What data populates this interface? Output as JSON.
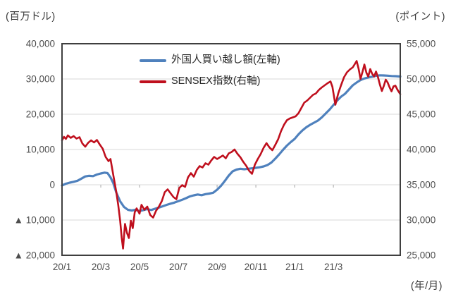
{
  "titles": {
    "left_axis_unit": "(百万ドル)",
    "right_axis_unit": "(ポイント)",
    "x_axis_unit": "(年/月)"
  },
  "legend": {
    "items": [
      {
        "label": "外国人買い越し額(左軸)",
        "color": "#4f81bd"
      },
      {
        "label": "SENSEX指数(右軸)",
        "color": "#bf0f1d"
      }
    ]
  },
  "chart_data": {
    "type": "line",
    "title": "",
    "left_axis": {
      "unit": "百万ドル",
      "min": -20000,
      "max": 40000,
      "step": 10000,
      "tick_values": [
        40000,
        30000,
        20000,
        10000,
        0,
        -10000,
        -20000
      ],
      "tick_labels": [
        "40,000",
        "30,000",
        "20,000",
        "10,000",
        "0",
        "▲ 10,000",
        "▲ 20,000"
      ]
    },
    "right_axis": {
      "unit": "ポイント",
      "min": 25000,
      "max": 55000,
      "step": 5000,
      "tick_values": [
        55000,
        50000,
        45000,
        40000,
        35000,
        30000,
        25000
      ],
      "tick_labels": [
        "55,000",
        "50,000",
        "45,000",
        "40,000",
        "35,000",
        "30,000",
        "25,000"
      ]
    },
    "x_axis": {
      "unit": "年/月",
      "domain_months": [
        0,
        17.45
      ],
      "labels": [
        "20/1",
        "20/3",
        "20/5",
        "20/7",
        "20/9",
        "20/11",
        "21/1",
        "21/3"
      ],
      "label_positions_months": [
        0,
        2,
        4,
        6,
        8,
        10,
        12,
        14
      ]
    },
    "grid": {
      "color": "#d9d9d9",
      "values_left": [
        30000,
        20000,
        10000,
        0,
        -10000
      ]
    },
    "plot_border_color": "#3f3f3f",
    "tick_color": "#a6a6a6",
    "label_color": "#4d4d4d",
    "series": [
      {
        "name": "外国人買い越し額(左軸)",
        "axis": "left",
        "color": "#4f81bd",
        "stroke_width": 3.2,
        "points": [
          [
            0,
            -200
          ],
          [
            0.2,
            300
          ],
          [
            0.4,
            600
          ],
          [
            0.6,
            850
          ],
          [
            0.8,
            1150
          ],
          [
            1,
            1750
          ],
          [
            1.2,
            2350
          ],
          [
            1.4,
            2550
          ],
          [
            1.6,
            2450
          ],
          [
            1.8,
            2900
          ],
          [
            2,
            3200
          ],
          [
            2.2,
            3450
          ],
          [
            2.35,
            3300
          ],
          [
            2.5,
            2100
          ],
          [
            2.65,
            400
          ],
          [
            2.8,
            -2200
          ],
          [
            3,
            -4700
          ],
          [
            3.2,
            -6300
          ],
          [
            3.4,
            -7100
          ],
          [
            3.6,
            -7300
          ],
          [
            3.8,
            -7100
          ],
          [
            4,
            -7450
          ],
          [
            4.2,
            -7200
          ],
          [
            4.4,
            -6900
          ],
          [
            4.6,
            -7150
          ],
          [
            4.8,
            -6800
          ],
          [
            5,
            -6450
          ],
          [
            5.2,
            -6100
          ],
          [
            5.4,
            -5700
          ],
          [
            5.6,
            -5350
          ],
          [
            5.8,
            -5050
          ],
          [
            6,
            -4650
          ],
          [
            6.2,
            -4250
          ],
          [
            6.4,
            -3800
          ],
          [
            6.6,
            -3300
          ],
          [
            6.8,
            -3000
          ],
          [
            7,
            -2750
          ],
          [
            7.2,
            -2950
          ],
          [
            7.4,
            -2650
          ],
          [
            7.6,
            -2500
          ],
          [
            7.8,
            -2250
          ],
          [
            8,
            -1400
          ],
          [
            8.2,
            -300
          ],
          [
            8.4,
            1100
          ],
          [
            8.6,
            2600
          ],
          [
            8.8,
            3800
          ],
          [
            9,
            4300
          ],
          [
            9.2,
            4550
          ],
          [
            9.4,
            4400
          ],
          [
            9.6,
            4550
          ],
          [
            9.8,
            4650
          ],
          [
            10,
            4800
          ],
          [
            10.2,
            4950
          ],
          [
            10.4,
            5200
          ],
          [
            10.6,
            5600
          ],
          [
            10.8,
            6300
          ],
          [
            11,
            7400
          ],
          [
            11.2,
            8600
          ],
          [
            11.4,
            9900
          ],
          [
            11.6,
            11100
          ],
          [
            11.8,
            12100
          ],
          [
            12,
            13000
          ],
          [
            12.2,
            14300
          ],
          [
            12.4,
            15400
          ],
          [
            12.6,
            16300
          ],
          [
            12.8,
            17000
          ],
          [
            13,
            17600
          ],
          [
            13.2,
            18200
          ],
          [
            13.4,
            19100
          ],
          [
            13.6,
            20200
          ],
          [
            13.8,
            21300
          ],
          [
            14,
            22600
          ],
          [
            14.2,
            23900
          ],
          [
            14.4,
            25000
          ],
          [
            14.6,
            25800
          ],
          [
            14.8,
            27000
          ],
          [
            15,
            28200
          ],
          [
            15.2,
            29000
          ],
          [
            15.4,
            29700
          ],
          [
            15.6,
            30150
          ],
          [
            15.8,
            30450
          ],
          [
            16,
            30650
          ],
          [
            16.2,
            30900
          ],
          [
            16.4,
            31050
          ],
          [
            16.6,
            31000
          ],
          [
            16.8,
            30950
          ],
          [
            17,
            30850
          ],
          [
            17.2,
            30800
          ],
          [
            17.45,
            30700
          ]
        ]
      },
      {
        "name": "SENSEX指数(右軸)",
        "axis": "right",
        "color": "#bf0f1d",
        "stroke_width": 2.6,
        "points": [
          [
            0,
            41300
          ],
          [
            0.1,
            41800
          ],
          [
            0.2,
            41500
          ],
          [
            0.3,
            42000
          ],
          [
            0.45,
            41650
          ],
          [
            0.6,
            41900
          ],
          [
            0.75,
            41550
          ],
          [
            0.9,
            41750
          ],
          [
            1.05,
            40850
          ],
          [
            1.2,
            40400
          ],
          [
            1.35,
            40950
          ],
          [
            1.5,
            41300
          ],
          [
            1.65,
            41000
          ],
          [
            1.8,
            41350
          ],
          [
            1.95,
            40700
          ],
          [
            2.1,
            40100
          ],
          [
            2.25,
            38950
          ],
          [
            2.4,
            38350
          ],
          [
            2.5,
            38650
          ],
          [
            2.65,
            36300
          ],
          [
            2.8,
            34000
          ],
          [
            2.9,
            32100
          ],
          [
            3,
            29900
          ],
          [
            3.08,
            27500
          ],
          [
            3.15,
            25950
          ],
          [
            3.25,
            29450
          ],
          [
            3.35,
            28200
          ],
          [
            3.45,
            27450
          ],
          [
            3.55,
            29900
          ],
          [
            3.65,
            28850
          ],
          [
            3.75,
            31100
          ],
          [
            3.85,
            31650
          ],
          [
            4,
            30900
          ],
          [
            4.1,
            32150
          ],
          [
            4.25,
            31450
          ],
          [
            4.4,
            31900
          ],
          [
            4.55,
            30700
          ],
          [
            4.7,
            30350
          ],
          [
            4.85,
            31300
          ],
          [
            5,
            31900
          ],
          [
            5.15,
            32700
          ],
          [
            5.3,
            33950
          ],
          [
            5.45,
            34350
          ],
          [
            5.6,
            33800
          ],
          [
            5.75,
            33250
          ],
          [
            5.9,
            32950
          ],
          [
            6.05,
            34550
          ],
          [
            6.2,
            34950
          ],
          [
            6.35,
            34700
          ],
          [
            6.5,
            36050
          ],
          [
            6.65,
            36650
          ],
          [
            6.8,
            36150
          ],
          [
            6.95,
            37100
          ],
          [
            7.1,
            37650
          ],
          [
            7.25,
            37450
          ],
          [
            7.4,
            38050
          ],
          [
            7.55,
            37850
          ],
          [
            7.7,
            38450
          ],
          [
            7.85,
            38950
          ],
          [
            8,
            38650
          ],
          [
            8.15,
            38900
          ],
          [
            8.3,
            39150
          ],
          [
            8.45,
            38750
          ],
          [
            8.6,
            39450
          ],
          [
            8.75,
            39650
          ],
          [
            8.9,
            40000
          ],
          [
            9.05,
            39400
          ],
          [
            9.2,
            38900
          ],
          [
            9.35,
            38250
          ],
          [
            9.5,
            37700
          ],
          [
            9.65,
            37000
          ],
          [
            9.8,
            36550
          ],
          [
            9.95,
            37850
          ],
          [
            10.1,
            38650
          ],
          [
            10.25,
            39350
          ],
          [
            10.4,
            40250
          ],
          [
            10.55,
            40900
          ],
          [
            10.7,
            40300
          ],
          [
            10.85,
            39900
          ],
          [
            11,
            40650
          ],
          [
            11.15,
            41450
          ],
          [
            11.3,
            42600
          ],
          [
            11.45,
            43500
          ],
          [
            11.6,
            44150
          ],
          [
            11.75,
            44400
          ],
          [
            11.9,
            44550
          ],
          [
            12.05,
            44700
          ],
          [
            12.2,
            45150
          ],
          [
            12.35,
            45900
          ],
          [
            12.5,
            46650
          ],
          [
            12.65,
            46950
          ],
          [
            12.8,
            47350
          ],
          [
            12.95,
            47750
          ],
          [
            13.1,
            47950
          ],
          [
            13.25,
            48450
          ],
          [
            13.4,
            48800
          ],
          [
            13.55,
            49100
          ],
          [
            13.7,
            49400
          ],
          [
            13.85,
            49650
          ],
          [
            13.95,
            48900
          ],
          [
            14.1,
            46350
          ],
          [
            14.25,
            47950
          ],
          [
            14.4,
            49150
          ],
          [
            14.55,
            50250
          ],
          [
            14.7,
            50950
          ],
          [
            14.85,
            51350
          ],
          [
            15,
            51650
          ],
          [
            15.1,
            52100
          ],
          [
            15.2,
            52550
          ],
          [
            15.3,
            51450
          ],
          [
            15.4,
            50000
          ],
          [
            15.5,
            51000
          ],
          [
            15.6,
            52050
          ],
          [
            15.7,
            50900
          ],
          [
            15.8,
            50350
          ],
          [
            15.9,
            51400
          ],
          [
            16,
            50750
          ],
          [
            16.1,
            50350
          ],
          [
            16.2,
            51050
          ],
          [
            16.3,
            50250
          ],
          [
            16.4,
            49200
          ],
          [
            16.5,
            48300
          ],
          [
            16.6,
            49000
          ],
          [
            16.7,
            49900
          ],
          [
            16.8,
            49500
          ],
          [
            16.9,
            48800
          ],
          [
            17,
            48250
          ],
          [
            17.1,
            48950
          ],
          [
            17.2,
            49050
          ],
          [
            17.3,
            48500
          ],
          [
            17.45,
            47850
          ]
        ]
      }
    ]
  }
}
